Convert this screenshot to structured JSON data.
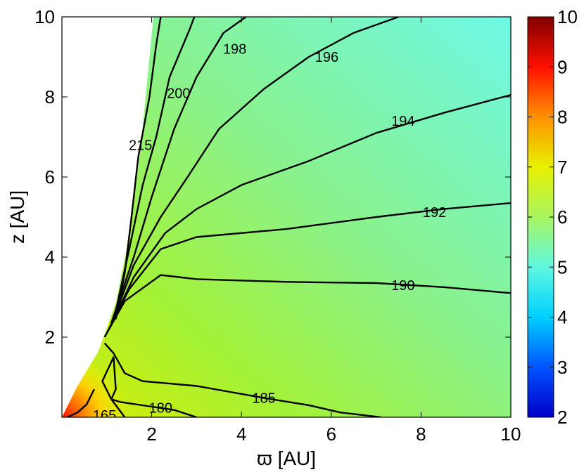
{
  "chart_data": {
    "type": "heatmap",
    "title": "",
    "xlabel": "ϖ [AU]",
    "ylabel": "z [AU]",
    "xlim": [
      0,
      10
    ],
    "ylim": [
      0,
      10
    ],
    "x_ticks": [
      "2",
      "4",
      "6",
      "8",
      "10"
    ],
    "y_ticks": [
      "2",
      "4",
      "6",
      "8",
      "10"
    ],
    "colorbar": {
      "range": [
        2,
        10
      ],
      "ticks": [
        "2",
        "3",
        "4",
        "5",
        "6",
        "7",
        "8",
        "9",
        "10"
      ]
    },
    "grid": false,
    "contours": [
      {
        "label": "165",
        "points": [
          [
            0.12,
            0.0
          ],
          [
            0.35,
            0.12
          ],
          [
            0.55,
            0.32
          ],
          [
            0.72,
            0.7
          ]
        ],
        "label_at": [
          0.95,
          0.05
        ]
      },
      {
        "label": "180",
        "points": [
          [
            1.4,
            0.0
          ],
          [
            1.1,
            0.45
          ],
          [
            0.9,
            0.9
          ],
          [
            1.15,
            1.5
          ],
          [
            1.2,
            0.7
          ],
          [
            1.1,
            0.45
          ],
          [
            1.3,
            0.38
          ],
          [
            1.9,
            0.28
          ],
          [
            2.5,
            0.18
          ],
          [
            3.0,
            0.0
          ]
        ],
        "label_at": [
          2.2,
          0.24
        ]
      },
      {
        "label": "185",
        "points": [
          [
            0.95,
            1.85
          ],
          [
            1.15,
            1.6
          ],
          [
            1.4,
            1.1
          ],
          [
            1.8,
            0.9
          ],
          [
            3.0,
            0.78
          ],
          [
            4.5,
            0.48
          ],
          [
            5.5,
            0.3
          ],
          [
            6.2,
            0.12
          ],
          [
            7.1,
            0.0
          ]
        ],
        "label_at": [
          4.5,
          0.48
        ]
      },
      {
        "label": "190",
        "points": [
          [
            0.95,
            2.0
          ],
          [
            1.4,
            2.9
          ],
          [
            2.2,
            3.55
          ],
          [
            3.0,
            3.45
          ],
          [
            5.0,
            3.38
          ],
          [
            7.0,
            3.35
          ],
          [
            8.5,
            3.25
          ],
          [
            10.0,
            3.1
          ]
        ],
        "label_at": [
          7.6,
          3.3
        ]
      },
      {
        "label": "192",
        "points": [
          [
            1.0,
            2.1
          ],
          [
            1.5,
            3.2
          ],
          [
            2.2,
            4.2
          ],
          [
            3.0,
            4.5
          ],
          [
            5.0,
            4.7
          ],
          [
            7.0,
            5.0
          ],
          [
            8.5,
            5.2
          ],
          [
            10.0,
            5.35
          ]
        ],
        "label_at": [
          8.3,
          5.12
        ]
      },
      {
        "label": "194",
        "points": [
          [
            1.05,
            2.2
          ],
          [
            1.6,
            3.5
          ],
          [
            2.3,
            4.6
          ],
          [
            3.0,
            5.2
          ],
          [
            4.0,
            5.8
          ],
          [
            5.5,
            6.4
          ],
          [
            7.0,
            7.1
          ],
          [
            8.5,
            7.6
          ],
          [
            10.0,
            8.05
          ]
        ],
        "label_at": [
          7.6,
          7.4
        ]
      },
      {
        "label": "196",
        "points": [
          [
            1.1,
            2.3
          ],
          [
            1.6,
            3.8
          ],
          [
            2.2,
            5.0
          ],
          [
            2.8,
            6.0
          ],
          [
            3.5,
            7.2
          ],
          [
            4.5,
            8.2
          ],
          [
            5.5,
            9.0
          ],
          [
            6.5,
            9.6
          ],
          [
            7.5,
            10.0
          ]
        ],
        "label_at": [
          5.9,
          9.0
        ]
      },
      {
        "label": "198",
        "points": [
          [
            1.1,
            2.35
          ],
          [
            1.6,
            4.0
          ],
          [
            2.0,
            5.5
          ],
          [
            2.5,
            7.2
          ],
          [
            3.0,
            8.5
          ],
          [
            3.6,
            9.6
          ],
          [
            4.1,
            10.0
          ]
        ],
        "label_at": [
          3.85,
          9.2
        ]
      },
      {
        "label": "200",
        "points": [
          [
            1.15,
            2.4
          ],
          [
            1.5,
            4.2
          ],
          [
            1.8,
            5.8
          ],
          [
            2.1,
            7.0
          ],
          [
            2.4,
            8.5
          ],
          [
            2.85,
            9.7
          ],
          [
            2.95,
            10.0
          ]
        ],
        "label_at": [
          2.6,
          8.1
        ]
      },
      {
        "label": "215",
        "points": [
          [
            1.2,
            2.45
          ],
          [
            1.4,
            3.6
          ],
          [
            1.55,
            5.0
          ],
          [
            1.7,
            6.5
          ],
          [
            1.95,
            8.0
          ],
          [
            2.1,
            9.3
          ],
          [
            2.2,
            10.0
          ]
        ],
        "label_at": [
          1.75,
          6.8
        ]
      }
    ]
  }
}
